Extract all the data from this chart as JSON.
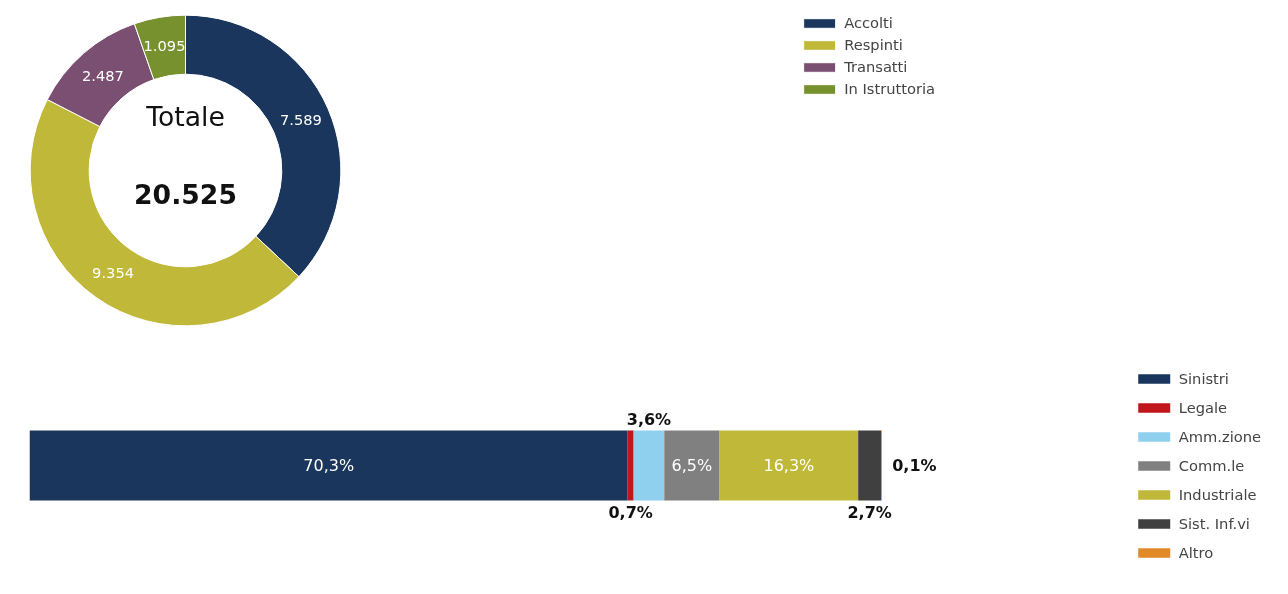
{
  "chart_data": [
    {
      "type": "donut",
      "categories": [
        "Accolti",
        "Respinti",
        "Transatti",
        "In Istruttoria"
      ],
      "values": [
        7589,
        9354,
        2487,
        1095
      ],
      "value_labels": [
        "7.589",
        "9.354",
        "2.487",
        "1.095"
      ],
      "colors": [
        "#1a365d",
        "#c0b838",
        "#7a4f72",
        "#76912e"
      ],
      "annotations": [
        "Totale",
        "20.525"
      ],
      "legend": "right"
    },
    {
      "type": "bar",
      "orientation": "horizontal",
      "stacked": true,
      "categories": [
        null
      ],
      "series": [
        {
          "name": "Sinistri",
          "color": "#1a365d",
          "values": [
            70.3
          ],
          "value_labels": [
            "70,3%"
          ]
        },
        {
          "name": "Legale",
          "color": "#c0161c",
          "values": [
            0.7
          ],
          "value_labels": [
            "0,7%"
          ]
        },
        {
          "name": "Amm.zione",
          "color": "#8fd0ee",
          "values": [
            3.6
          ],
          "value_labels": [
            "3,6%"
          ]
        },
        {
          "name": "Comm.le",
          "color": "#808080",
          "values": [
            6.5
          ],
          "value_labels": [
            "6,5%"
          ]
        },
        {
          "name": "Industriale",
          "color": "#c0b838",
          "values": [
            16.3
          ],
          "value_labels": [
            "16,3%"
          ]
        },
        {
          "name": "Sist. Inf.vi",
          "color": "#404040",
          "values": [
            2.7
          ],
          "value_labels": [
            "2,7%"
          ]
        },
        {
          "name": "Altro",
          "color": "#e08a2a",
          "values": [
            0.1
          ],
          "value_labels": [
            "0,1%"
          ]
        }
      ],
      "legend": "right"
    }
  ]
}
